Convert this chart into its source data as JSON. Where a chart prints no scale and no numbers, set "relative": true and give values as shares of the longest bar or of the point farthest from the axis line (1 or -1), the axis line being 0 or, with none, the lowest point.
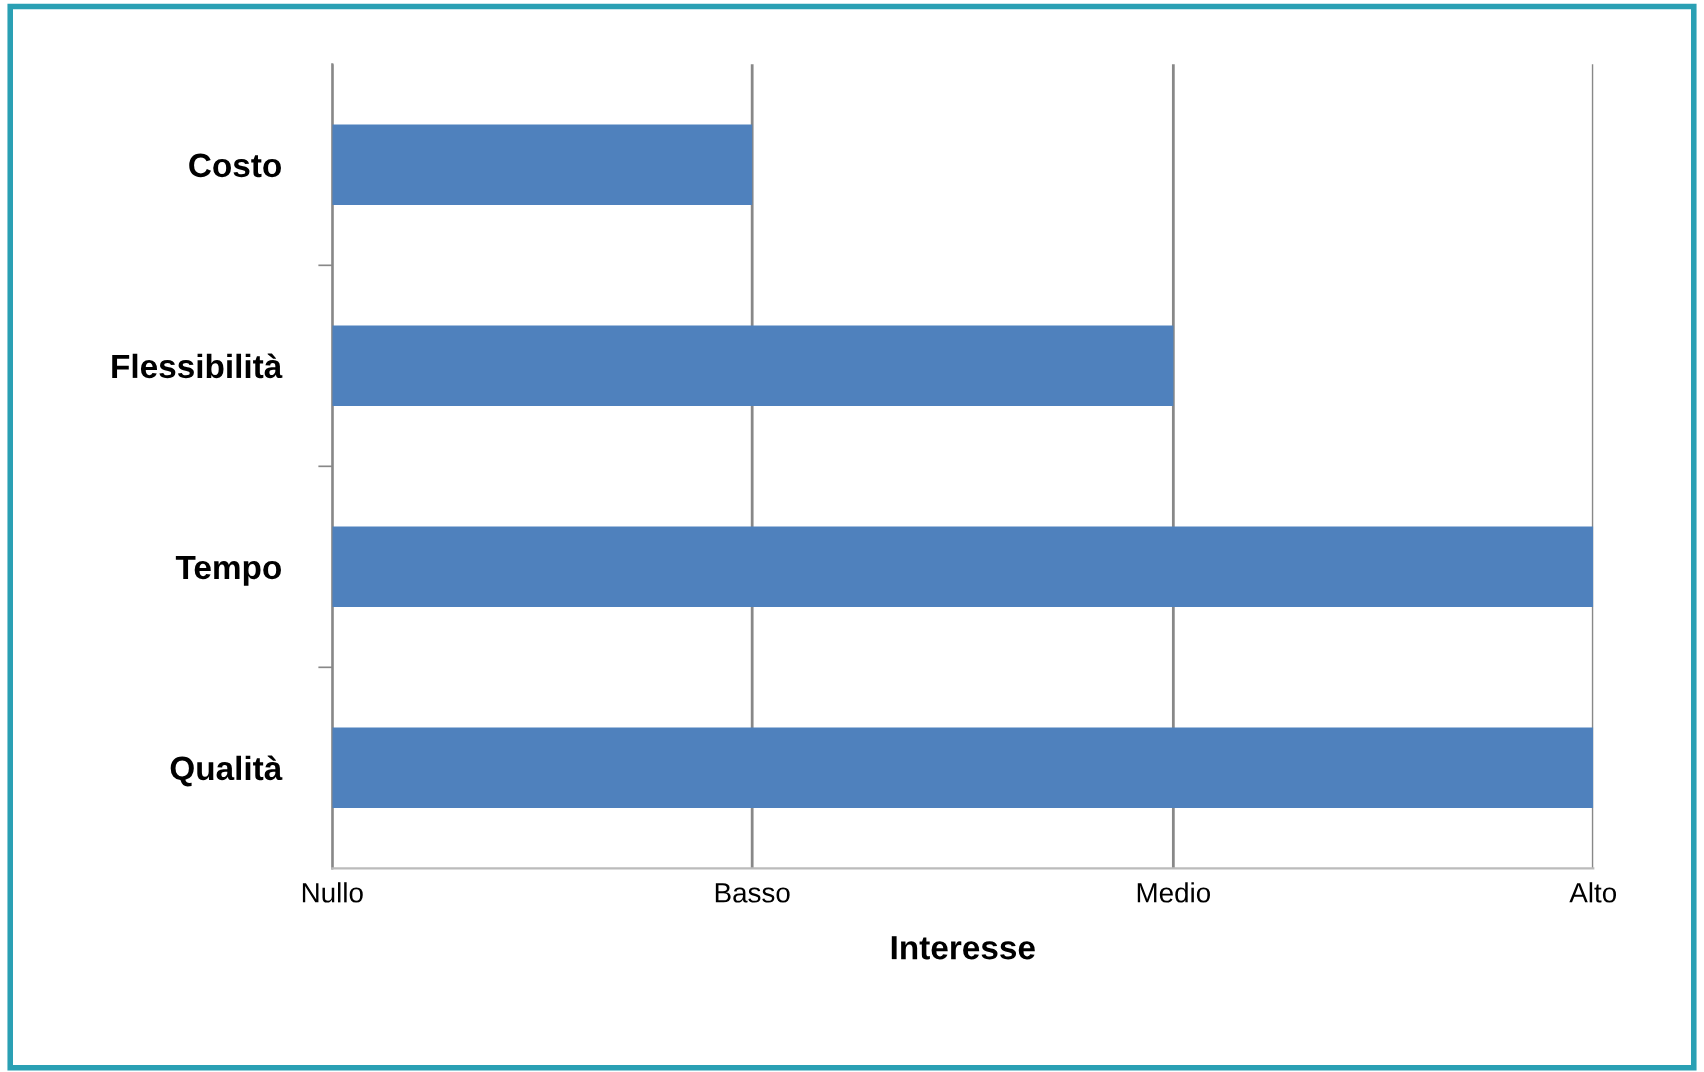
{
  "chart_data": {
    "type": "bar",
    "orientation": "horizontal",
    "xlabel": "Interesse",
    "relative": true,
    "categories": [
      "Costo",
      "Flessibilità",
      "Tempo",
      "Qualità"
    ],
    "values": [
      0.333,
      0.667,
      1,
      1
    ],
    "color": "#4f81bd",
    "ref_lines": [
      {
        "axis": "x",
        "value": 0,
        "label": "Nullo",
        "color": "#888888"
      },
      {
        "axis": "x",
        "value": 0.333,
        "label": "Basso",
        "color": "#888888"
      },
      {
        "axis": "x",
        "value": 0.667,
        "label": "Medio",
        "color": "#888888"
      },
      {
        "axis": "x",
        "value": 1,
        "label": "Alto",
        "color": "#888888"
      }
    ]
  }
}
